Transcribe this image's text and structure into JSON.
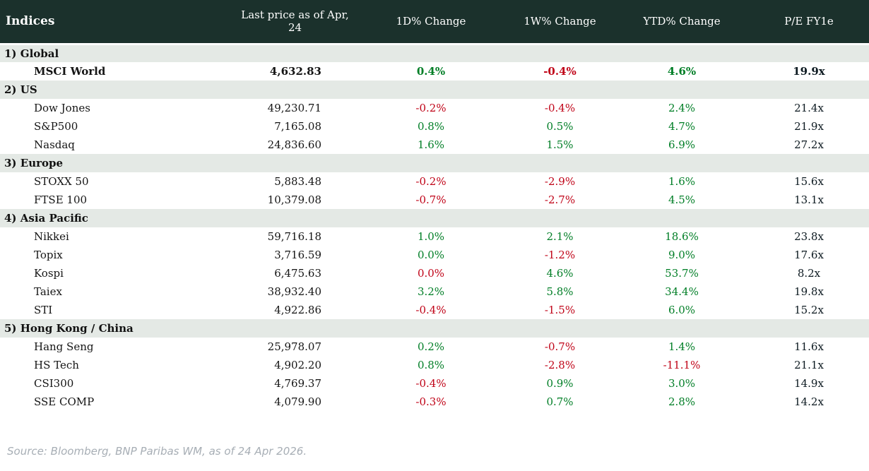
{
  "colors": {
    "header_bg": "#1b312c",
    "section_bg": "#e4e9e5",
    "up": "#007e26",
    "down": "#c00418",
    "pe_text": "#0d1a21",
    "source_text": "#a7aeb5"
  },
  "chart_data": {
    "type": "table",
    "title": "Indices",
    "columns": [
      "Indices",
      "Last price as of Apr, 24",
      "1D% Change",
      "1W% Change",
      "YTD% Change",
      "P/E FY1e"
    ],
    "sections": [
      {
        "label": "1) Global",
        "rows": [
          {
            "name": "MSCI World",
            "last_price": "4,632.83",
            "d1": {
              "v": "0.4%",
              "dir": "up"
            },
            "w1": {
              "v": "-0.4%",
              "dir": "down"
            },
            "ytd": {
              "v": "4.6%",
              "dir": "up"
            },
            "pe": "19.9x",
            "bold": true
          }
        ]
      },
      {
        "label": "2) US",
        "rows": [
          {
            "name": "Dow Jones",
            "last_price": "49,230.71",
            "d1": {
              "v": "-0.2%",
              "dir": "down"
            },
            "w1": {
              "v": "-0.4%",
              "dir": "down"
            },
            "ytd": {
              "v": "2.4%",
              "dir": "up"
            },
            "pe": "21.4x",
            "bold": false
          },
          {
            "name": "S&P500",
            "last_price": "7,165.08",
            "d1": {
              "v": "0.8%",
              "dir": "up"
            },
            "w1": {
              "v": "0.5%",
              "dir": "up"
            },
            "ytd": {
              "v": "4.7%",
              "dir": "up"
            },
            "pe": "21.9x",
            "bold": false
          },
          {
            "name": "Nasdaq",
            "last_price": "24,836.60",
            "d1": {
              "v": "1.6%",
              "dir": "up"
            },
            "w1": {
              "v": "1.5%",
              "dir": "up"
            },
            "ytd": {
              "v": "6.9%",
              "dir": "up"
            },
            "pe": "27.2x",
            "bold": false
          }
        ]
      },
      {
        "label": "3) Europe",
        "rows": [
          {
            "name": "STOXX 50",
            "last_price": "5,883.48",
            "d1": {
              "v": "-0.2%",
              "dir": "down"
            },
            "w1": {
              "v": "-2.9%",
              "dir": "down"
            },
            "ytd": {
              "v": "1.6%",
              "dir": "up"
            },
            "pe": "15.6x",
            "bold": false
          },
          {
            "name": "FTSE 100",
            "last_price": "10,379.08",
            "d1": {
              "v": "-0.7%",
              "dir": "down"
            },
            "w1": {
              "v": "-2.7%",
              "dir": "down"
            },
            "ytd": {
              "v": "4.5%",
              "dir": "up"
            },
            "pe": "13.1x",
            "bold": false
          }
        ]
      },
      {
        "label": "4) Asia Pacific",
        "rows": [
          {
            "name": "Nikkei",
            "last_price": "59,716.18",
            "d1": {
              "v": "1.0%",
              "dir": "up"
            },
            "w1": {
              "v": "2.1%",
              "dir": "up"
            },
            "ytd": {
              "v": "18.6%",
              "dir": "up"
            },
            "pe": "23.8x",
            "bold": false
          },
          {
            "name": "Topix",
            "last_price": "3,716.59",
            "d1": {
              "v": "0.0%",
              "dir": "up"
            },
            "w1": {
              "v": "-1.2%",
              "dir": "down"
            },
            "ytd": {
              "v": "9.0%",
              "dir": "up"
            },
            "pe": "17.6x",
            "bold": false
          },
          {
            "name": "Kospi",
            "last_price": "6,475.63",
            "d1": {
              "v": "0.0%",
              "dir": "down"
            },
            "w1": {
              "v": "4.6%",
              "dir": "up"
            },
            "ytd": {
              "v": "53.7%",
              "dir": "up"
            },
            "pe": "8.2x",
            "bold": false
          },
          {
            "name": "Taiex",
            "last_price": "38,932.40",
            "d1": {
              "v": "3.2%",
              "dir": "up"
            },
            "w1": {
              "v": "5.8%",
              "dir": "up"
            },
            "ytd": {
              "v": "34.4%",
              "dir": "up"
            },
            "pe": "19.8x",
            "bold": false
          },
          {
            "name": "STI",
            "last_price": "4,922.86",
            "d1": {
              "v": "-0.4%",
              "dir": "down"
            },
            "w1": {
              "v": "-1.5%",
              "dir": "down"
            },
            "ytd": {
              "v": "6.0%",
              "dir": "up"
            },
            "pe": "15.2x",
            "bold": false
          }
        ]
      },
      {
        "label": "5) Hong Kong / China",
        "rows": [
          {
            "name": "Hang Seng",
            "last_price": "25,978.07",
            "d1": {
              "v": "0.2%",
              "dir": "up"
            },
            "w1": {
              "v": "-0.7%",
              "dir": "down"
            },
            "ytd": {
              "v": "1.4%",
              "dir": "up"
            },
            "pe": "11.6x",
            "bold": false
          },
          {
            "name": "HS Tech",
            "last_price": "4,902.20",
            "d1": {
              "v": "0.8%",
              "dir": "up"
            },
            "w1": {
              "v": "-2.8%",
              "dir": "down"
            },
            "ytd": {
              "v": "-11.1%",
              "dir": "down"
            },
            "pe": "21.1x",
            "bold": false
          },
          {
            "name": "CSI300",
            "last_price": "4,769.37",
            "d1": {
              "v": "-0.4%",
              "dir": "down"
            },
            "w1": {
              "v": "0.9%",
              "dir": "up"
            },
            "ytd": {
              "v": "3.0%",
              "dir": "up"
            },
            "pe": "14.9x",
            "bold": false
          },
          {
            "name": "SSE COMP",
            "last_price": "4,079.90",
            "d1": {
              "v": "-0.3%",
              "dir": "down"
            },
            "w1": {
              "v": "0.7%",
              "dir": "up"
            },
            "ytd": {
              "v": "2.8%",
              "dir": "up"
            },
            "pe": "14.2x",
            "bold": false
          }
        ]
      }
    ],
    "source": "Source: Bloomberg, BNP Paribas WM, as of 24 Apr 2026."
  }
}
